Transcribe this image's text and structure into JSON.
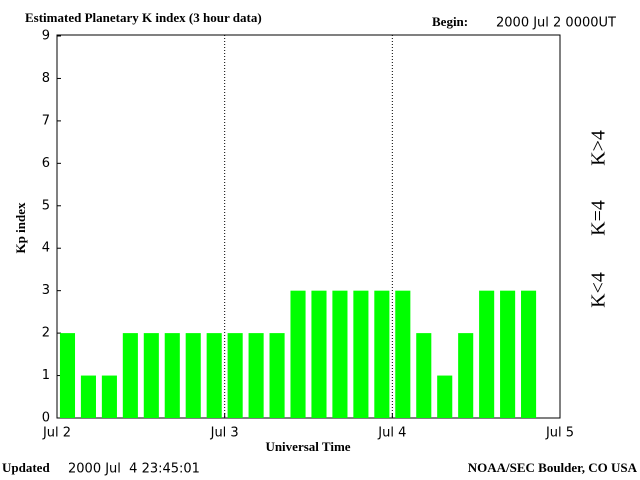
{
  "chart_data": {
    "type": "bar",
    "title": "Estimated Planetary K index (3 hour data)",
    "begin_label": "Begin:",
    "begin": "2000 Jul 2 0000UT",
    "y_label": "Kp index",
    "x_label": "Universal Time",
    "updated_label": "Updated",
    "updated": "2000 Jul  4 23:45:01",
    "source": "NOAA/SEC Boulder, CO USA",
    "categories": [
      null,
      null,
      null,
      null,
      null,
      null,
      null,
      null,
      null,
      null,
      null,
      null,
      null,
      null,
      null,
      null,
      null,
      null,
      null,
      null,
      null,
      null,
      null,
      null
    ],
    "values": [
      2,
      1,
      1,
      2,
      2,
      2,
      2,
      2,
      2,
      2,
      2,
      3,
      3,
      3,
      3,
      3,
      3,
      2,
      1,
      2,
      3,
      3,
      3,
      null
    ],
    "color": "#00ff00",
    "ylim": [
      0,
      9
    ],
    "yticks": [
      0,
      1,
      2,
      3,
      4,
      5,
      6,
      7,
      8,
      9
    ],
    "xlim": [
      0,
      3
    ],
    "xticks": [
      {
        "value": 0,
        "label": "Jul 2"
      },
      {
        "value": 1,
        "label": "Jul 3"
      },
      {
        "value": 2,
        "label": "Jul 4"
      },
      {
        "value": 3,
        "label": "Jul 5"
      }
    ],
    "grid": true,
    "legend": [
      {
        "label": "K<4",
        "color": "#33ee33"
      },
      {
        "label": "K=4",
        "color": "#ffcc00"
      },
      {
        "label": "K>4",
        "color": "#ff3300"
      }
    ]
  }
}
